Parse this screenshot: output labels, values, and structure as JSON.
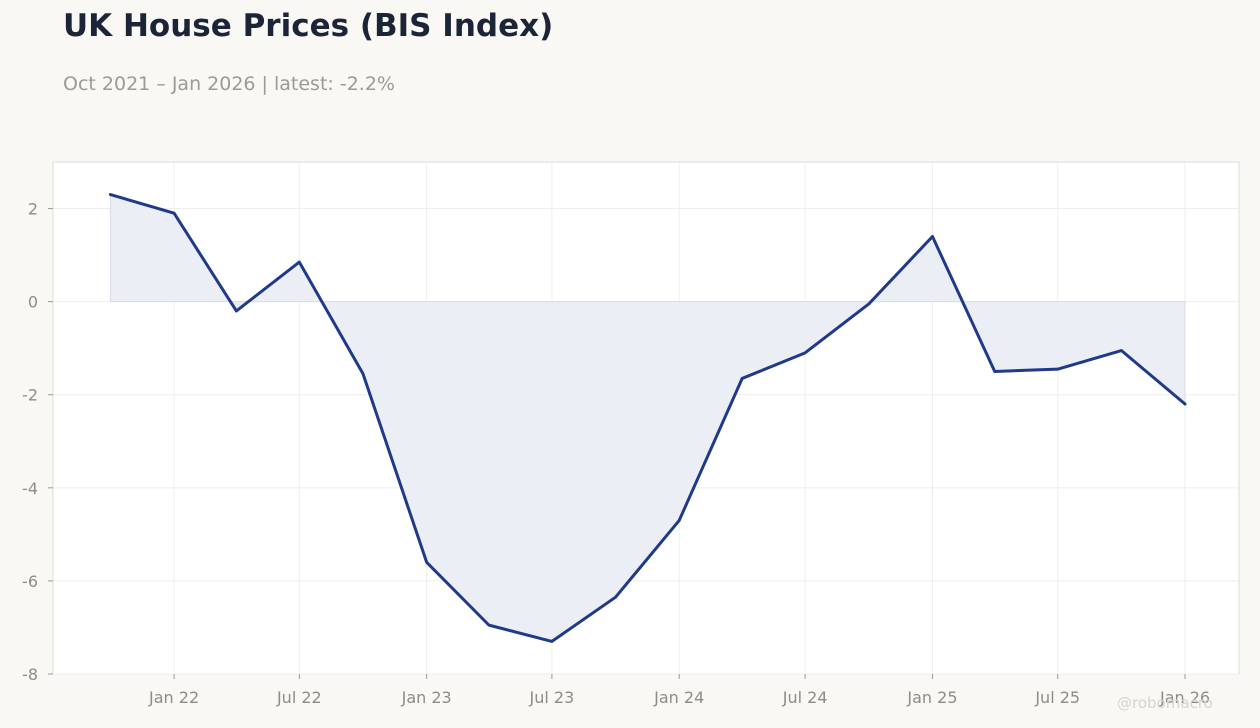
{
  "header": {
    "title": "UK House Prices (BIS Index)",
    "subtitle": "Oct 2021 – Jan 2026 | latest: -2.2%"
  },
  "watermark": "@robomacro",
  "colors": {
    "line": "#1f3a8a",
    "fill": "#eceef5",
    "background": "#f9f8f4",
    "plot_background": "#ffffff",
    "grid": "#eeeeee",
    "tick_text": "#8c8c88"
  },
  "chart_data": {
    "type": "area",
    "x": [
      "2021-10",
      "2022-01",
      "2022-04",
      "2022-07",
      "2022-10",
      "2023-01",
      "2023-04",
      "2023-07",
      "2023-10",
      "2024-01",
      "2024-04",
      "2024-07",
      "2024-10",
      "2025-01",
      "2025-04",
      "2025-07",
      "2025-10",
      "2026-01"
    ],
    "series": [
      {
        "values": [
          2.3,
          1.9,
          -0.2,
          0.85,
          -1.55,
          -5.6,
          -6.95,
          -7.3,
          -6.35,
          -4.7,
          -1.65,
          -1.1,
          -0.05,
          1.4,
          -1.5,
          -1.45,
          -1.05,
          -2.2
        ]
      }
    ],
    "baseline": 0,
    "xticks": [
      "Jan 22",
      "Jul 22",
      "Jan 23",
      "Jul 23",
      "Jan 24",
      "Jul 24",
      "Jan 25",
      "Jul 25",
      "Jan 26"
    ],
    "xtick_dates": [
      "2022-01",
      "2022-07",
      "2023-01",
      "2023-07",
      "2024-01",
      "2024-07",
      "2025-01",
      "2025-07",
      "2026-01"
    ],
    "yticks": [
      2,
      0,
      -2,
      -4,
      -6,
      -8
    ],
    "ylim": [
      -8,
      3
    ],
    "xlim": [
      "2021-07-10",
      "2026-03-20"
    ],
    "grid": true,
    "legend": "none"
  }
}
